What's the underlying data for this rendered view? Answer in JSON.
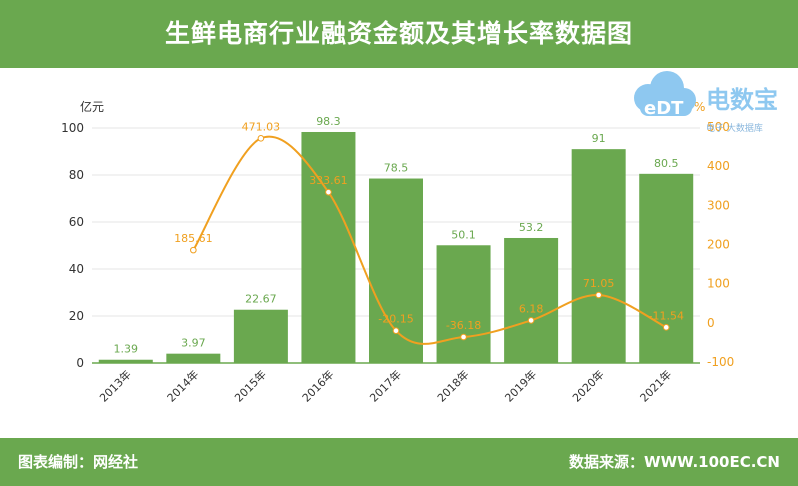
{
  "title": "生鲜电商行业融资金额及其增长率数据图",
  "footer": {
    "left": "图表编制：网经社",
    "right": "数据来源：WWW.100EC.CN"
  },
  "logo": {
    "text": "电数宝",
    "sub": "电子 大数据库",
    "badge": "eDT"
  },
  "colors": {
    "bar": "#6aa84f",
    "line": "#f0a020",
    "header": "#6aa84f"
  },
  "chart_data": {
    "type": "bar",
    "categories": [
      "2013年",
      "2014年",
      "2015年",
      "2016年",
      "2017年",
      "2018年",
      "2019年",
      "2020年",
      "2021年"
    ],
    "series": [
      {
        "type": "bar",
        "axis": "left",
        "values": [
          1.39,
          3.97,
          22.67,
          98.3,
          78.5,
          50.1,
          53.2,
          91,
          80.5
        ]
      },
      {
        "type": "line",
        "axis": "right",
        "values": [
          null,
          185.61,
          471.03,
          333.61,
          -20.15,
          -36.18,
          6.18,
          71.05,
          -11.54
        ]
      }
    ],
    "bar_labels": [
      "1.39",
      "3.97",
      "22.67",
      "98.3",
      "78.5",
      "50.1",
      "53.2",
      "91",
      "80.5"
    ],
    "line_labels": [
      "",
      "185.61",
      "471.03",
      "333.61",
      "-20.15",
      "-36.18",
      "6.18",
      "71.05",
      "-11.54"
    ],
    "ylabel_left": "亿元",
    "ylabel_right": "%",
    "ylim_left": [
      0,
      100
    ],
    "ylim_right": [
      -100,
      500
    ],
    "yticks_left": [
      "0",
      "20",
      "40",
      "60",
      "80",
      "100"
    ],
    "yticks_right": [
      "-100",
      "0",
      "100",
      "200",
      "300",
      "400",
      "500"
    ],
    "grid": true,
    "legend": "none"
  }
}
